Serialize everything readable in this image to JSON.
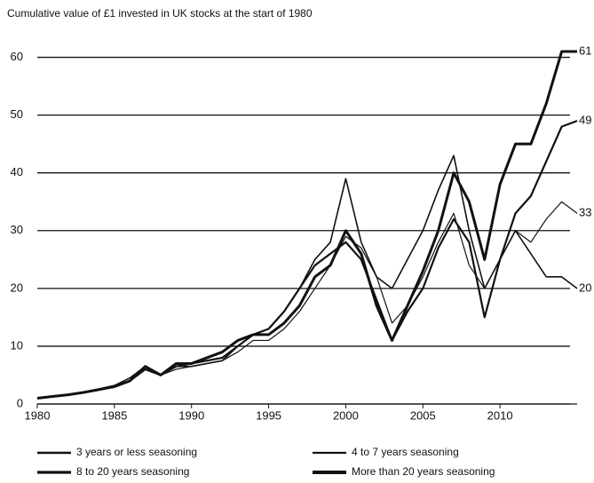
{
  "chart_data": {
    "type": "line",
    "title": "Cumulative value of £1 invested in UK stocks at the start of 1980",
    "x": [
      1980,
      1981,
      1982,
      1983,
      1984,
      1985,
      1986,
      1987,
      1988,
      1989,
      1990,
      1991,
      1992,
      1993,
      1994,
      1995,
      1996,
      1997,
      1998,
      1999,
      2000,
      2001,
      2002,
      2003,
      2004,
      2005,
      2006,
      2007,
      2008,
      2009,
      2010,
      2011,
      2012,
      2013,
      2014,
      2015
    ],
    "series": [
      {
        "name": "3 years or less seasoning",
        "color": "#111111",
        "width": 1.6,
        "values": [
          1,
          1.3,
          1.6,
          2,
          2.6,
          3.2,
          4.5,
          6.5,
          5,
          6.5,
          6.5,
          7,
          7.5,
          10,
          12,
          13,
          16,
          20,
          25,
          28,
          39,
          28,
          22,
          20,
          25,
          30,
          37,
          43,
          30,
          20,
          25,
          30,
          26,
          22,
          22,
          20
        ]
      },
      {
        "name": "4 to 7 years seasoning",
        "color": "#111111",
        "width": 1.2,
        "values": [
          1,
          1.3,
          1.6,
          2,
          2.5,
          3,
          4,
          6,
          5,
          6,
          6.5,
          7,
          7.5,
          9,
          11,
          11,
          13,
          16,
          20,
          24,
          29,
          27,
          22,
          14,
          17,
          22,
          28,
          33,
          24,
          20,
          25,
          30,
          28,
          32,
          35,
          33
        ]
      },
      {
        "name": "8 to 20 years seasoning",
        "color": "#111111",
        "width": 2.2,
        "values": [
          1,
          1.3,
          1.6,
          2,
          2.5,
          3,
          4,
          6,
          5,
          6.5,
          7,
          7.5,
          8,
          10,
          12,
          13,
          16,
          20,
          24,
          26,
          28,
          25,
          18,
          11,
          16,
          20,
          27,
          32,
          28,
          15,
          25,
          33,
          36,
          42,
          48,
          49
        ]
      },
      {
        "name": "More than 20 years seasoning",
        "color": "#111111",
        "width": 3,
        "values": [
          1,
          1.3,
          1.6,
          2,
          2.5,
          3,
          4,
          6.5,
          5,
          7,
          7,
          8,
          9,
          11,
          12,
          12,
          14,
          17,
          22,
          24,
          30,
          26,
          17,
          11,
          17,
          23,
          30,
          40,
          35,
          25,
          38,
          45,
          45,
          52,
          61,
          61
        ]
      }
    ],
    "xlim": [
      1980,
      2015
    ],
    "xticks": [
      1980,
      1985,
      1990,
      1995,
      2000,
      2005,
      2010
    ],
    "ylim": [
      0,
      65
    ],
    "yticks": [
      0,
      10,
      20,
      30,
      40,
      50,
      60
    ],
    "grid": true
  }
}
